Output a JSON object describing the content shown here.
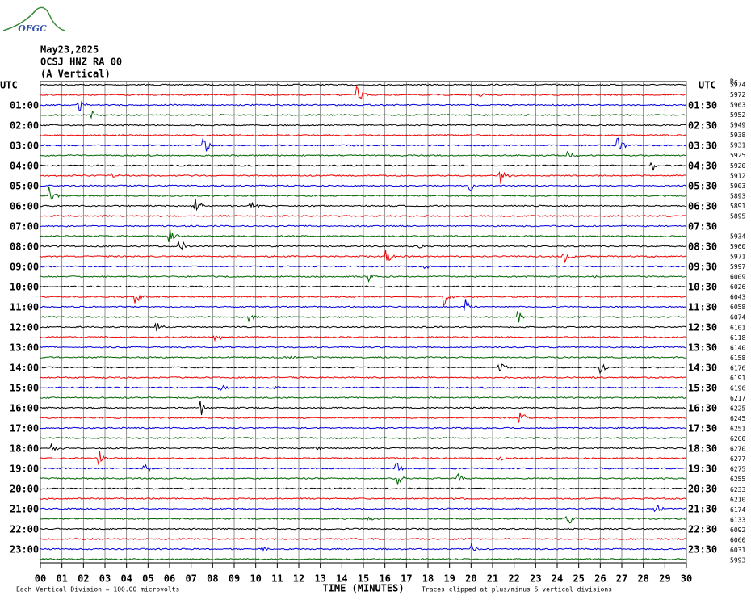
{
  "logo": "OFGC",
  "header": {
    "date": "May23,2025",
    "station": "OCSJ HNZ RA 00",
    "component": "(A Vertical)"
  },
  "left_axis": {
    "title": "UTC",
    "labels": [
      "01:00",
      "02:00",
      "03:00",
      "04:00",
      "05:00",
      "06:00",
      "07:00",
      "08:00",
      "09:00",
      "10:00",
      "11:00",
      "12:00",
      "13:00",
      "14:00",
      "15:00",
      "16:00",
      "17:00",
      "18:00",
      "19:00",
      "20:00",
      "21:00",
      "22:00",
      "23:00"
    ]
  },
  "right_axis": {
    "title": "UTC",
    "labels": [
      "01:30",
      "02:30",
      "03:30",
      "04:30",
      "05:30",
      "06:30",
      "07:30",
      "08:30",
      "09:30",
      "10:30",
      "11:30",
      "12:30",
      "13:30",
      "14:30",
      "15:30",
      "16:30",
      "17:30",
      "18:30",
      "19:30",
      "20:30",
      "21:30",
      "22:30",
      "23:30"
    ]
  },
  "counts": {
    "title": "Rc",
    "values": [
      5974,
      5972,
      5963,
      5952,
      5949,
      5938,
      5931,
      5925,
      5920,
      5912,
      5903,
      5893,
      5891,
      5895,
      5934,
      5960,
      5971,
      5997,
      6009,
      6026,
      6043,
      6058,
      6074,
      6101,
      6118,
      6140,
      6158,
      6176,
      6191,
      6196,
      6217,
      6225,
      6245,
      6251,
      6260,
      6270,
      6277,
      6275,
      6255,
      6233,
      6210,
      6174,
      6133,
      6092,
      6060,
      6031,
      5993
    ]
  },
  "x_axis": {
    "title": "TIME (MINUTES)",
    "labels": [
      "00",
      "01",
      "02",
      "03",
      "04",
      "05",
      "06",
      "07",
      "08",
      "09",
      "10",
      "11",
      "12",
      "13",
      "14",
      "15",
      "16",
      "17",
      "18",
      "19",
      "20",
      "21",
      "22",
      "23",
      "24",
      "25",
      "26",
      "27",
      "28",
      "29",
      "30"
    ]
  },
  "footer": {
    "scale": "Each Vertical Division =  100.00 microvolts",
    "clip": "Traces clipped at plus/minus 5 vertical divisions"
  }
}
